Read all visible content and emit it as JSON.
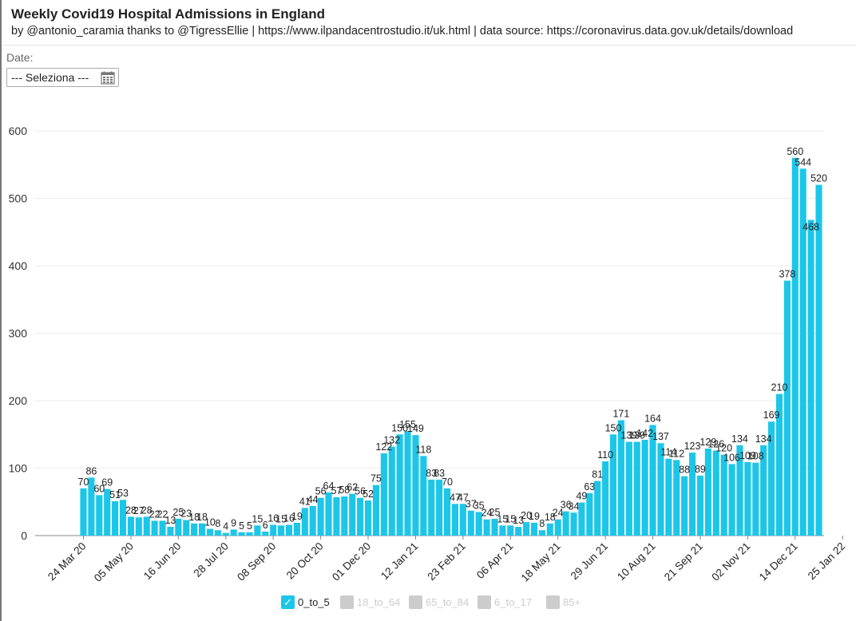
{
  "header": {
    "title": "Weekly Covid19 Hospital Admissions in England",
    "subtitle": "by @antonio_caramia thanks to @TigressEllie | https://www.ilpandacentrostudio.it/uk.html | data source: https://coronavirus.data.gov.uk/details/download"
  },
  "filter": {
    "label": "Date:",
    "select_value": "--- Seleziona ---",
    "icon": "calendar-icon"
  },
  "colors": {
    "bar": "#1cc6e8",
    "legend_active": "#1cc6e8",
    "legend_inactive": "#cccccc",
    "inactive_text": "#cccccc",
    "grid": "#ececec",
    "axis": "#888888"
  },
  "legend": [
    {
      "label": "0_to_5",
      "active": true,
      "check": "✓"
    },
    {
      "label": "18_to_64",
      "active": false,
      "check": ""
    },
    {
      "label": "65_to_84",
      "active": false,
      "check": ""
    },
    {
      "label": "6_to_17",
      "active": false,
      "check": ""
    },
    {
      "label": "85+",
      "active": false,
      "check": ""
    }
  ],
  "chart_data": {
    "type": "bar",
    "title": "",
    "xlabel": "",
    "ylabel": "",
    "ylim": [
      0,
      600
    ],
    "yticks": [
      0,
      100,
      200,
      300,
      400,
      500,
      600
    ],
    "grid": true,
    "legend_position": "bottom",
    "x_tick_labels": [
      "24 Mar 20",
      "05 May 20",
      "16 Jun 20",
      "28 Jul 20",
      "08 Sep 20",
      "20 Oct 20",
      "01 Dec 20",
      "12 Jan 21",
      "23 Feb 21",
      "06 Apr 21",
      "18 May 21",
      "29 Jun 21",
      "10 Aug 21",
      "21 Sep 21",
      "02 Nov 21",
      "14 Dec 21",
      "25 Jan 22"
    ],
    "series": [
      {
        "name": "0_to_5",
        "values": [
          70,
          86,
          60,
          69,
          51,
          53,
          28,
          27,
          28,
          22,
          22,
          13,
          25,
          23,
          18,
          18,
          10,
          8,
          4,
          9,
          5,
          5,
          15,
          6,
          16,
          15,
          16,
          19,
          41,
          44,
          56,
          64,
          57,
          58,
          62,
          56,
          52,
          75,
          122,
          132,
          150,
          155,
          149,
          118,
          83,
          83,
          70,
          47,
          47,
          37,
          35,
          24,
          25,
          15,
          15,
          13,
          20,
          19,
          8,
          18,
          24,
          36,
          34,
          49,
          63,
          81,
          110,
          150,
          171,
          139,
          139,
          142,
          164,
          137,
          114,
          112,
          88,
          123,
          89,
          129,
          126,
          120,
          106,
          134,
          109,
          108,
          134,
          169,
          210,
          378,
          560,
          544,
          468,
          520
        ]
      }
    ]
  }
}
